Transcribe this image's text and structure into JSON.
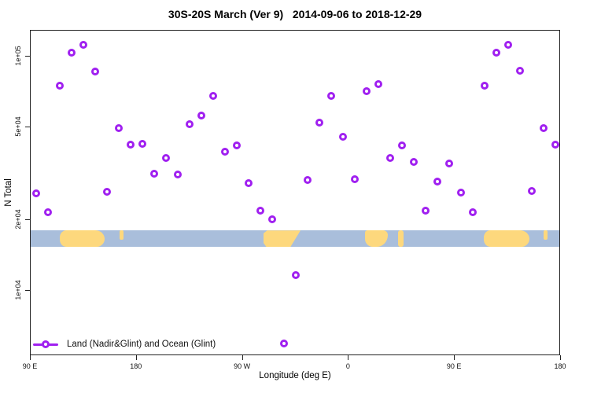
{
  "colors": {
    "marker": "#a020f0",
    "ocean": "#a9bedb",
    "land": "#fdd87d",
    "axis": "#222222"
  },
  "legend": {
    "label": "Land (Nadir&Glint) and Ocean (Glint)"
  },
  "chart_data": {
    "type": "scatter",
    "title": "30S-20S March (Ver 9)   2014-09-06 to 2018-12-29",
    "xlabel": "Longitude (deg E)",
    "ylabel": "N Total",
    "y_scale": "log",
    "grid": false,
    "legend_position": "bottom-left",
    "x_axis_note": "longitude wraps: 90E eastward to 180 (second pass), 450 degrees total",
    "xlim_deg_continuous": [
      90,
      540
    ],
    "ylim": [
      5300,
      129000
    ],
    "x_ticks": [
      {
        "label": "90 E",
        "lon": 90
      },
      {
        "label": "180",
        "lon": 180
      },
      {
        "label": "90 W",
        "lon": 270
      },
      {
        "label": "0",
        "lon": 360
      },
      {
        "label": "90 E",
        "lon": 450
      },
      {
        "label": "180",
        "lon": 540
      }
    ],
    "y_ticks": [
      {
        "label": "1e+05",
        "value": 100000
      },
      {
        "label": "5e+04",
        "value": 50000
      },
      {
        "label": "2e+04",
        "value": 20000
      },
      {
        "label": "1e+04",
        "value": 10000
      }
    ],
    "points": [
      {
        "lon": 95,
        "n": 26100
      },
      {
        "lon": 105,
        "n": 21700
      },
      {
        "lon": 115,
        "n": 75100
      },
      {
        "lon": 125,
        "n": 104000
      },
      {
        "lon": 135,
        "n": 112000
      },
      {
        "lon": 145,
        "n": 86400
      },
      {
        "lon": 155,
        "n": 26500
      },
      {
        "lon": 165,
        "n": 49500
      },
      {
        "lon": 175,
        "n": 42100
      },
      {
        "lon": 185,
        "n": 42400
      },
      {
        "lon": 195,
        "n": 31600
      },
      {
        "lon": 205,
        "n": 36900
      },
      {
        "lon": 215,
        "n": 31400
      },
      {
        "lon": 225,
        "n": 51500
      },
      {
        "lon": 235,
        "n": 56000
      },
      {
        "lon": 245,
        "n": 68000
      },
      {
        "lon": 255,
        "n": 39300
      },
      {
        "lon": 265,
        "n": 41800
      },
      {
        "lon": 275,
        "n": 28800
      },
      {
        "lon": 285,
        "n": 22000
      },
      {
        "lon": 295,
        "n": 20200
      },
      {
        "lon": 305,
        "n": 5960
      },
      {
        "lon": 315,
        "n": 11700
      },
      {
        "lon": 325,
        "n": 29700
      },
      {
        "lon": 335,
        "n": 52300
      },
      {
        "lon": 345,
        "n": 68000
      },
      {
        "lon": 355,
        "n": 45500
      },
      {
        "lon": 365,
        "n": 30000
      },
      {
        "lon": 375,
        "n": 71000
      },
      {
        "lon": 385,
        "n": 76300
      },
      {
        "lon": 395,
        "n": 36900
      },
      {
        "lon": 405,
        "n": 41800
      },
      {
        "lon": 415,
        "n": 35500
      },
      {
        "lon": 425,
        "n": 22000
      },
      {
        "lon": 435,
        "n": 29300
      },
      {
        "lon": 445,
        "n": 35000
      },
      {
        "lon": 455,
        "n": 26300
      },
      {
        "lon": 465,
        "n": 21700
      },
      {
        "lon": 475,
        "n": 75100
      },
      {
        "lon": 485,
        "n": 104000
      },
      {
        "lon": 495,
        "n": 112000
      },
      {
        "lon": 505,
        "n": 86900
      },
      {
        "lon": 515,
        "n": 26700
      },
      {
        "lon": 525,
        "n": 49500
      },
      {
        "lon": 535,
        "n": 42100
      }
    ],
    "map_band": {
      "description": "30S-20S latitude strip map overlay: ocean with land patches",
      "n_top": 18100,
      "n_bottom": 15400,
      "land_patches": [
        {
          "name": "australia-1",
          "lon": [
            114.5,
            153
          ]
        },
        {
          "name": "new-caledonia-1",
          "lon": [
            165.5,
            168.5
          ]
        },
        {
          "name": "south-america",
          "lon": [
            287.5,
            319
          ]
        },
        {
          "name": "africa",
          "lon": [
            373.5,
            393
          ]
        },
        {
          "name": "madagascar",
          "lon": [
            402,
            406.5
          ]
        },
        {
          "name": "australia-2",
          "lon": [
            474.5,
            513
          ]
        },
        {
          "name": "new-caledonia-2",
          "lon": [
            525.5,
            528.5
          ]
        }
      ]
    }
  }
}
